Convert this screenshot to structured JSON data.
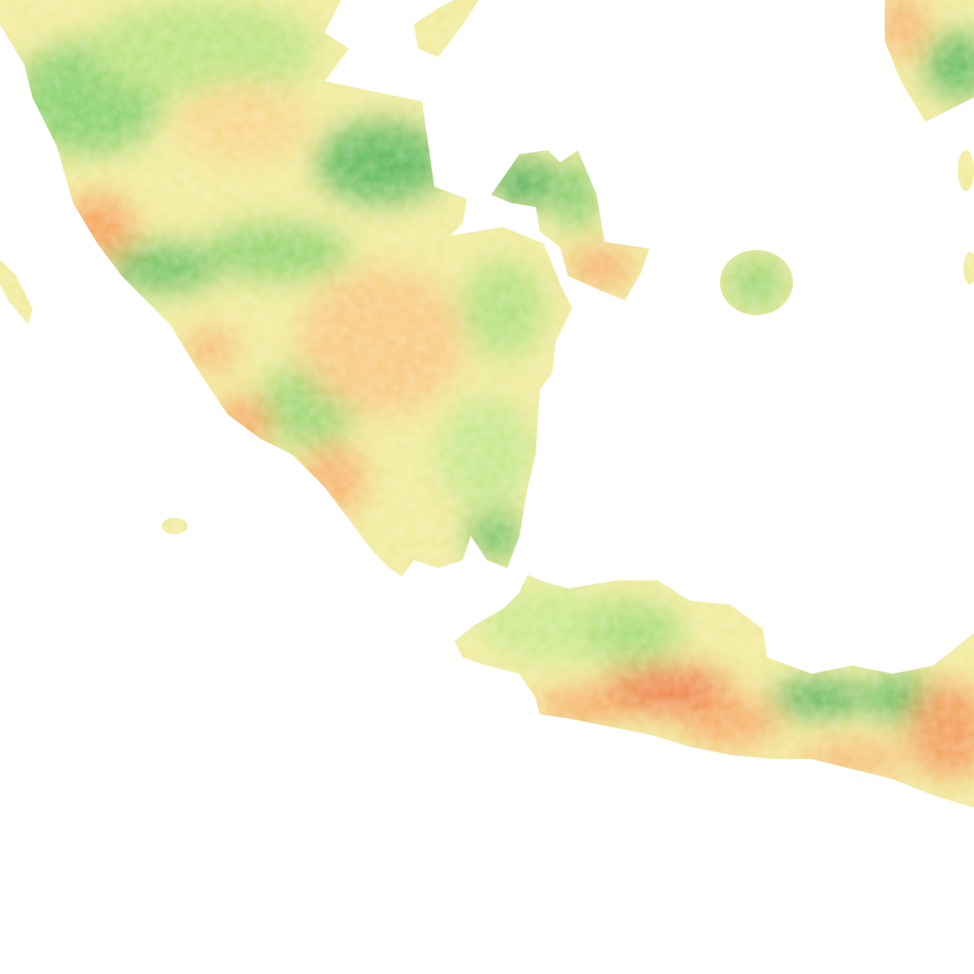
{
  "map": {
    "type": "raster-colormap",
    "background": "#ffffff",
    "colormap": {
      "low": "#e8562e",
      "low_mid": "#f7a55c",
      "mid": "#fbe59a",
      "high_mid": "#b5e07a",
      "high": "#3daa4e"
    },
    "regions": [
      "sumatra-south",
      "bangka-island",
      "belitung-island",
      "java-west",
      "kalimantan-fragment",
      "small-islands"
    ]
  }
}
